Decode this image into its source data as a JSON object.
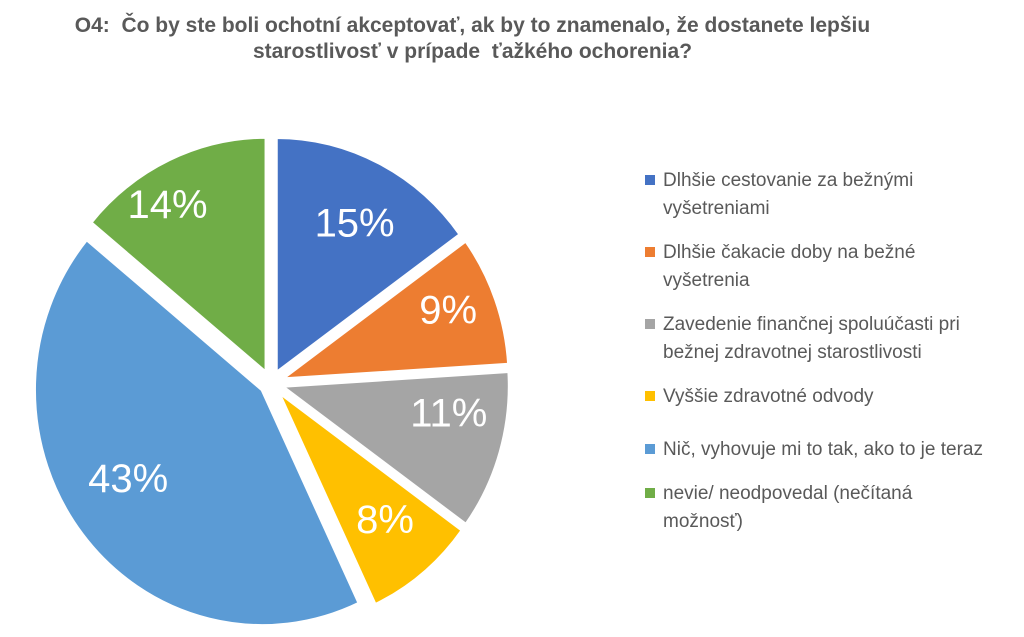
{
  "header": {
    "line1": "O4:  Čo by ste boli ochotní akceptovať, ak by to znamenalo, že dostanete lepšiu",
    "line2": "starostlivosť v prípade  ťažkého ochorenia?"
  },
  "chart_data": {
    "type": "pie",
    "title": "O4: Čo by ste boli ochotní akceptovať, ak by to znamenalo, že dostanete lepšiu starostlivosť v prípade ťažkého ochorenia?",
    "units": "percent",
    "direction": "clockwise",
    "start_angle_deg": 0,
    "exploded": true,
    "legend_position": "right",
    "data_label_style": "inside-end white percent labels",
    "slices": [
      {
        "label": "Dlhšie cestovanie za bežnými vyšetreniami",
        "value": 15,
        "display": "15%",
        "color": "#4472C4"
      },
      {
        "label": "Dlhšie čakacie doby na bežné vyšetrenia",
        "value": 9,
        "display": "9%",
        "color": "#ED7D31"
      },
      {
        "label": "Zavedenie finančnej spoluúčasti pri bežnej zdravotnej starostlivosti",
        "value": 11,
        "display": "11%",
        "color": "#A5A5A5"
      },
      {
        "label": "Vyššie zdravotné odvody",
        "value": 8,
        "display": "8%",
        "color": "#FFC000"
      },
      {
        "label": "Nič, vyhovuje mi to tak, ako to je teraz",
        "value": 43,
        "display": "43%",
        "color": "#5B9BD5"
      },
      {
        "label": "nevie/ neodpovedal (nečítaná možnosť)",
        "value": 14,
        "display": "14%",
        "color": "#70AD47"
      }
    ],
    "title_color": "#595959",
    "legend_text_color": "#595959",
    "data_label_color": "#FFFFFF",
    "background": "#FFFFFF"
  }
}
